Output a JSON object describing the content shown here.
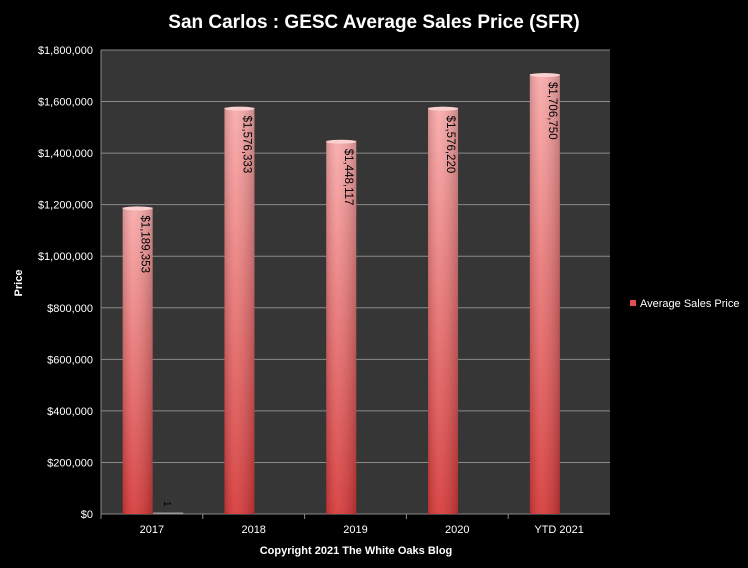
{
  "chart_data": {
    "type": "bar",
    "title": "San Carlos : GESC Average Sales Price (SFR)",
    "xlabel": "Copyright 2021 The White  Oaks Blog",
    "ylabel": "Price",
    "categories": [
      "2017",
      "2018",
      "2019",
      "2020",
      "YTD 2021"
    ],
    "series": [
      {
        "name": "Average Sales Price",
        "values": [
          1189353,
          1576333,
          1448117,
          1576220,
          1706750
        ],
        "labels": [
          "$1,189,353",
          "$1,576,333",
          "$1,448,117",
          "$1,576,220",
          "$1,706,750"
        ]
      },
      {
        "name": "",
        "values": [
          1,
          null,
          null,
          null,
          null
        ],
        "labels": [
          "1",
          null,
          null,
          null,
          null
        ]
      }
    ],
    "ylim": [
      0,
      1800000
    ],
    "yticks": [
      0,
      200000,
      400000,
      600000,
      800000,
      1000000,
      1200000,
      1400000,
      1600000,
      1800000
    ],
    "ytick_labels": [
      "$0",
      "$200,000",
      "$400,000",
      "$600,000",
      "$800,000",
      "$1,000,000",
      "$1,200,000",
      "$1,400,000",
      "$1,600,000",
      "$1,800,000"
    ],
    "grid": true,
    "legend": "right",
    "colors": {
      "background": "#000000",
      "plot": "#363636",
      "grid": "#8a8a8a",
      "bar_top": "#f8a6a6",
      "bar_bottom": "#d83a3a"
    }
  }
}
